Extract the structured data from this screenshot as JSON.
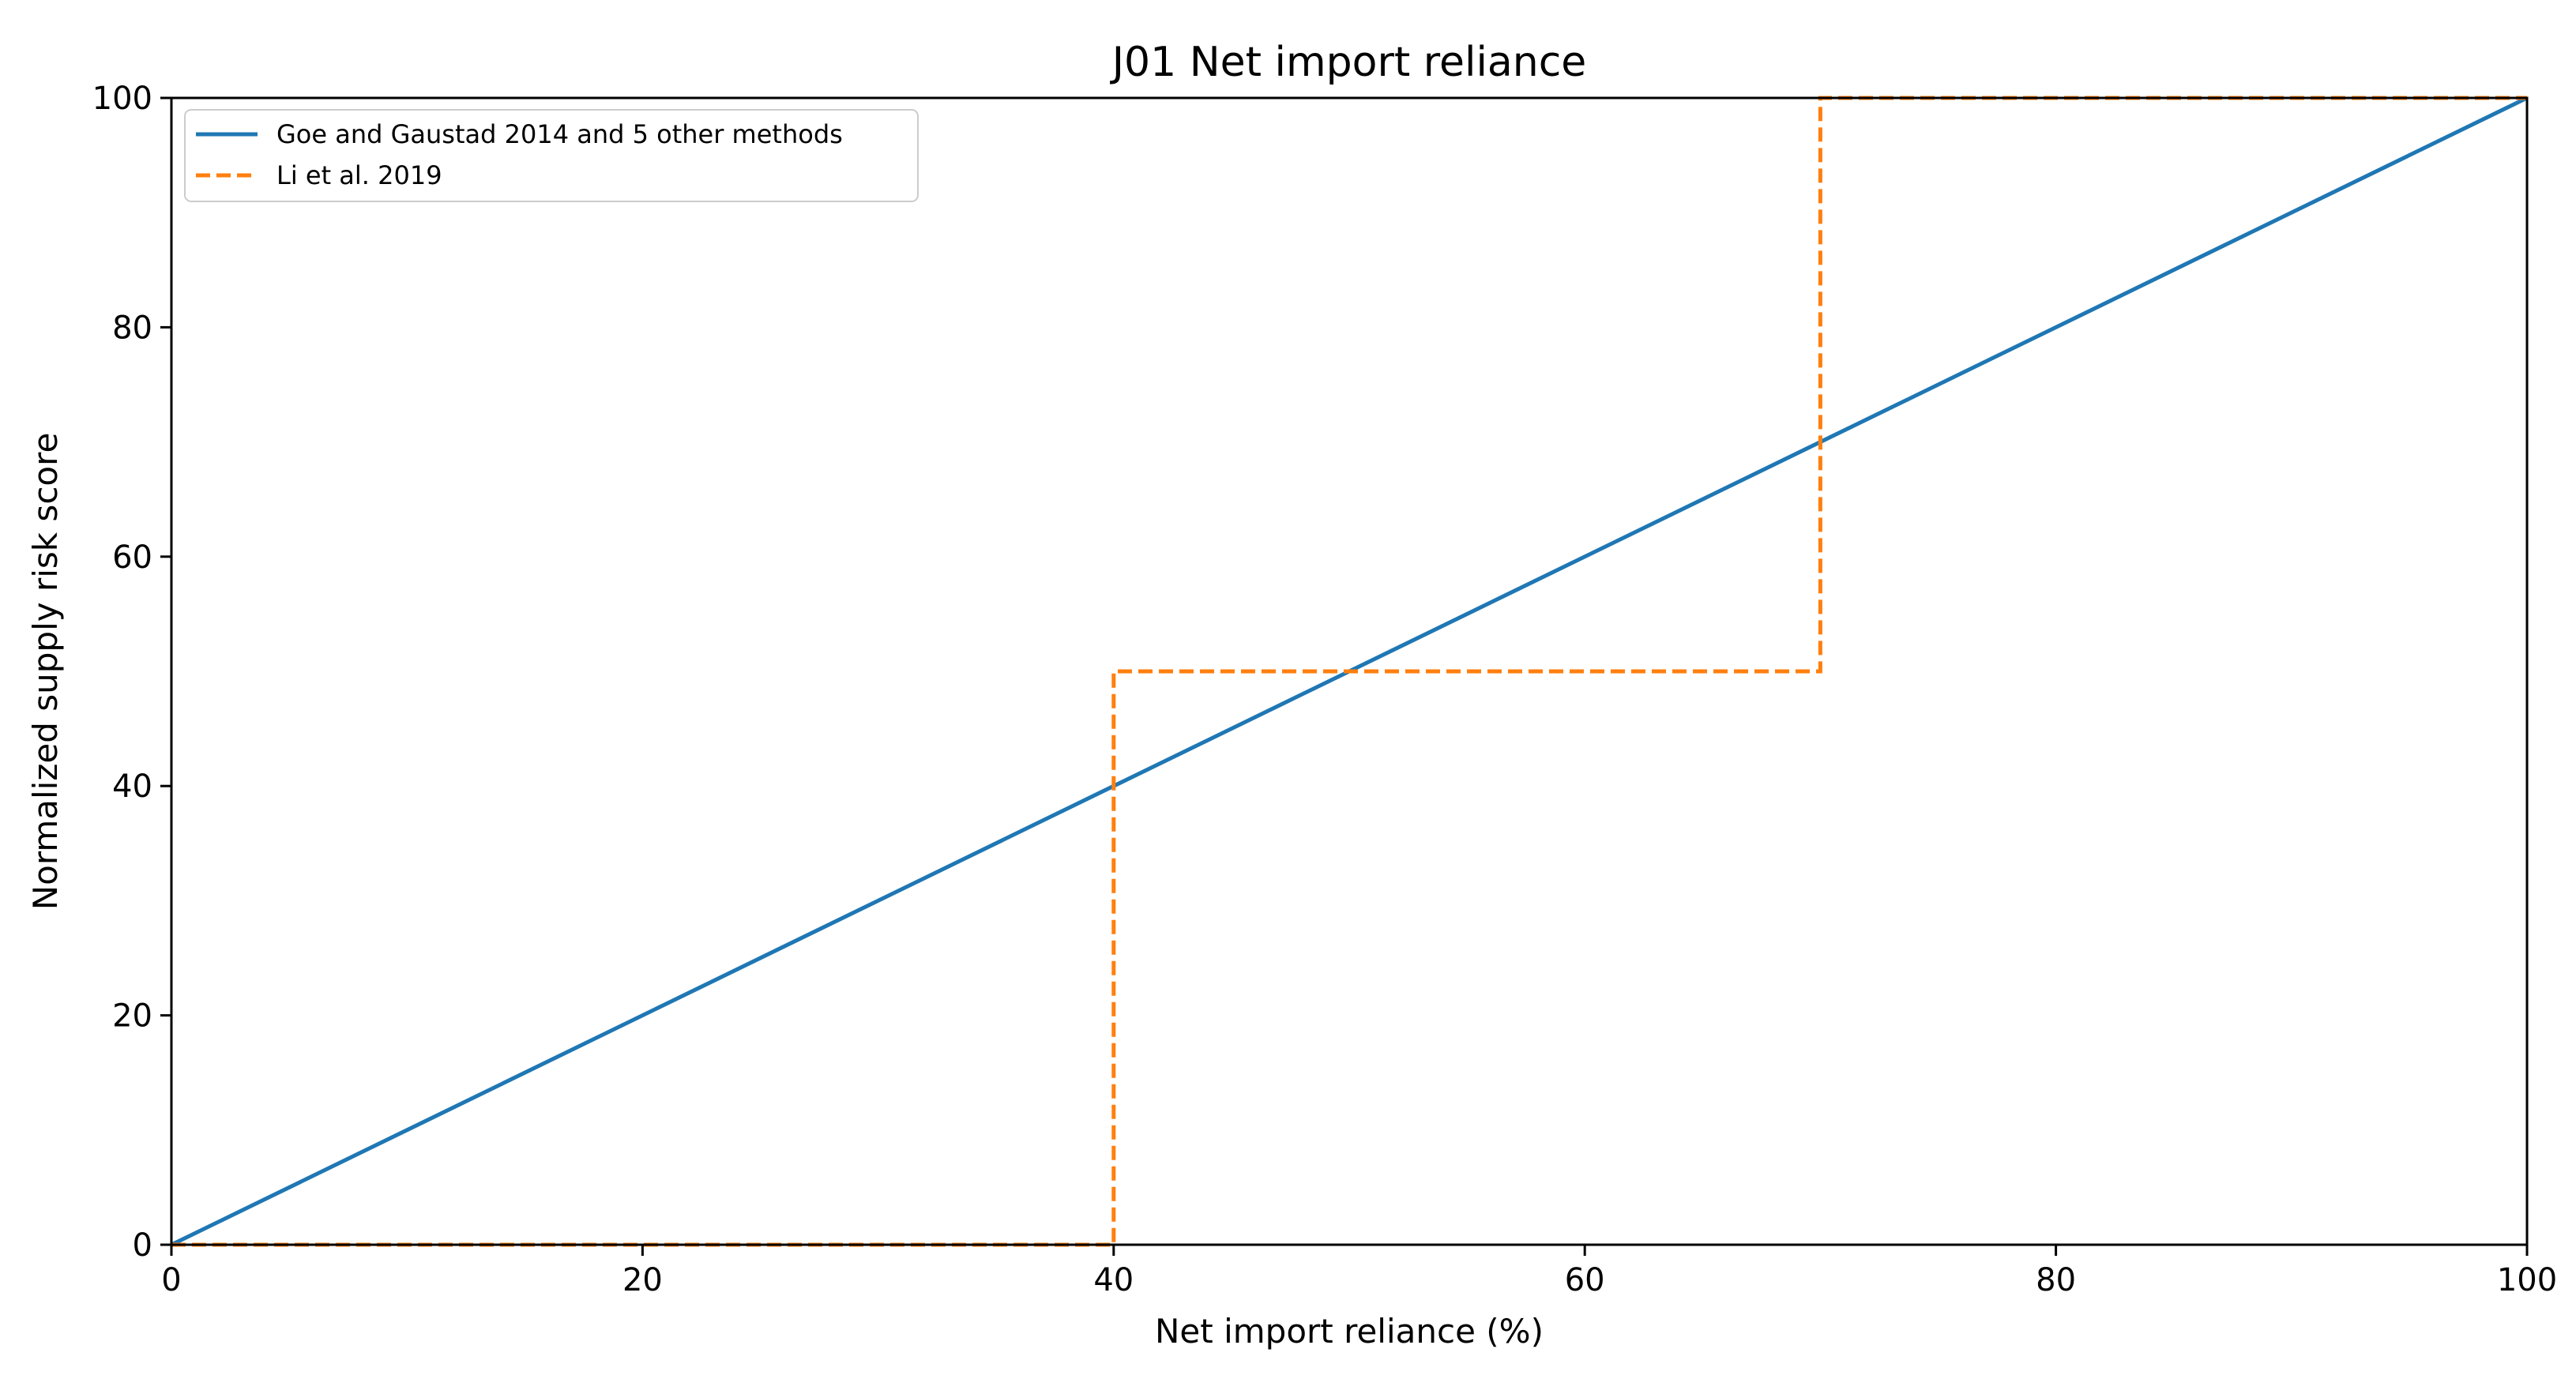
{
  "chart_data": {
    "type": "line",
    "title": "J01 Net import reliance",
    "xlabel": "Net import reliance (%)",
    "ylabel": "Normalized supply risk score",
    "xlim": [
      0,
      100
    ],
    "ylim": [
      0,
      100
    ],
    "xticks": [
      0,
      20,
      40,
      60,
      80,
      100
    ],
    "yticks": [
      0,
      20,
      40,
      60,
      80,
      100
    ],
    "xtick_labels": [
      "0",
      "20",
      "40",
      "60",
      "80",
      "100"
    ],
    "ytick_labels": [
      "0",
      "20",
      "40",
      "60",
      "80",
      "100"
    ],
    "grid": false,
    "legend_position": "top-left",
    "series": [
      {
        "name": "Goe and Gaustad 2014 and 5 other methods",
        "color": "#1f77b4",
        "style": "solid",
        "x": [
          0,
          100
        ],
        "y": [
          0,
          100
        ]
      },
      {
        "name": "Li et al. 2019",
        "color": "#ff7f0e",
        "style": "dashed",
        "x": [
          0,
          40,
          40,
          70,
          70,
          100
        ],
        "y": [
          0,
          0,
          50,
          50,
          100,
          100
        ]
      }
    ]
  }
}
